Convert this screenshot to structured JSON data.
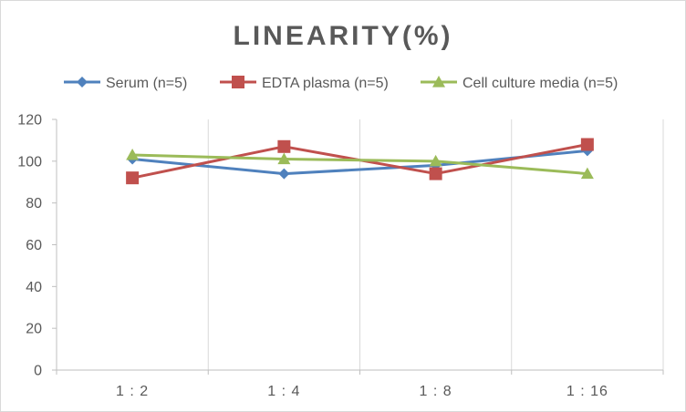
{
  "chart_data": {
    "type": "line",
    "title": "LINEARITY(%)",
    "xlabel": "",
    "ylabel": "",
    "categories": [
      "1:2",
      "1:4",
      "1:8",
      "1:16"
    ],
    "ylim": [
      0,
      120
    ],
    "yticks": [
      0,
      20,
      40,
      60,
      80,
      100,
      120
    ],
    "grid": "vertical",
    "legend_position": "top",
    "series": [
      {
        "name": "Serum (n=5)",
        "values": [
          101,
          94,
          98,
          105
        ],
        "color": "#4f81bd",
        "marker": "diamond"
      },
      {
        "name": "EDTA plasma (n=5)",
        "values": [
          92,
          107,
          94,
          108
        ],
        "color": "#c0504d",
        "marker": "square"
      },
      {
        "name": "Cell culture media (n=5)",
        "values": [
          103,
          101,
          100,
          94
        ],
        "color": "#9bbb59",
        "marker": "triangle"
      }
    ]
  }
}
